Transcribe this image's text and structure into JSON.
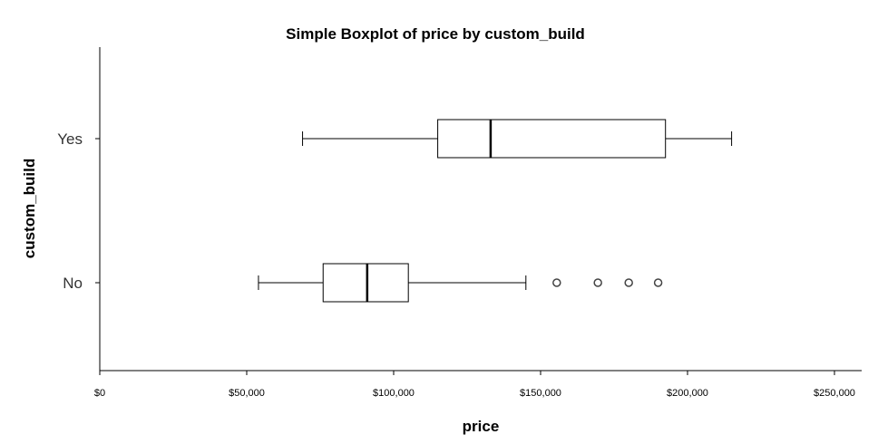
{
  "chart_data": {
    "type": "boxplot",
    "orientation": "horizontal",
    "title": "Simple Boxplot of price by custom_build",
    "xlabel": "price",
    "ylabel": "custom_build",
    "xlim": [
      0,
      265000
    ],
    "x_ticks": [
      {
        "value": 0,
        "label": "$0"
      },
      {
        "value": 50000,
        "label": "$50,000"
      },
      {
        "value": 100000,
        "label": "$100,000"
      },
      {
        "value": 150000,
        "label": "$150,000"
      },
      {
        "value": 200000,
        "label": "$200,000"
      },
      {
        "value": 250000,
        "label": "$250,000"
      }
    ],
    "categories": [
      "Yes",
      "No"
    ],
    "grid": false,
    "series": [
      {
        "category": "Yes",
        "whisker_low": 69000,
        "q1": 115000,
        "median": 133000,
        "q3": 192500,
        "whisker_high": 215000,
        "outliers": []
      },
      {
        "category": "No",
        "whisker_low": 54000,
        "q1": 76000,
        "median": 91000,
        "q3": 105000,
        "whisker_high": 145000,
        "outliers": [
          155500,
          169500,
          180000,
          190000
        ]
      }
    ]
  }
}
